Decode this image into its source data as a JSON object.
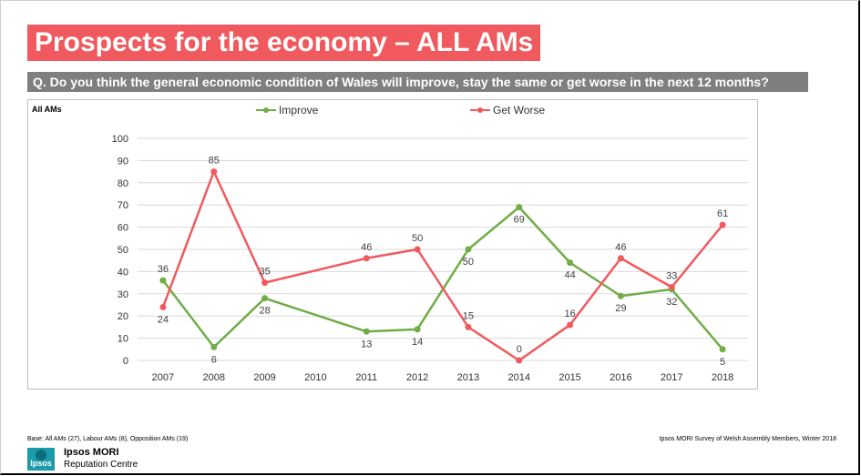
{
  "title": "Prospects for the economy – ALL AMs",
  "question": "Q. Do you think the general economic condition of Wales will improve, stay the same or get worse in the next 12 months?",
  "panel_label": "All AMs",
  "footer": {
    "base": "Base: All AMs (27), Labour AMs (8), Opposition AMs (19)",
    "source": "Ipsos MORI Survey of Welsh Assembly Members, Winter 2018",
    "logo_text": "Ipsos",
    "brand_name": "Ipsos MORI",
    "brand_sub": "Reputation Centre"
  },
  "colors": {
    "title_bg": "#f05a5e",
    "question_bg": "#7f7f7f",
    "improve": "#70ad47",
    "worse": "#f05a5e"
  },
  "chart_data": {
    "type": "line",
    "categories": [
      "2007",
      "2008",
      "2009",
      "2010",
      "2011",
      "2012",
      "2013",
      "2014",
      "2015",
      "2016",
      "2017",
      "2018"
    ],
    "ylim": [
      0,
      100
    ],
    "yticks": [
      "0",
      "10",
      "20",
      "30",
      "40",
      "50",
      "60",
      "70",
      "80",
      "90",
      "100"
    ],
    "grid": true,
    "legend": "top",
    "series": [
      {
        "name": "Improve",
        "color": "#70ad47",
        "values": [
          36,
          6,
          28,
          null,
          13,
          14,
          50,
          69,
          44,
          29,
          32,
          5
        ],
        "label_pos": [
          "above",
          "below",
          "below",
          null,
          "below",
          "below",
          "below",
          "below",
          "below",
          "below",
          "below",
          "below"
        ]
      },
      {
        "name": "Get Worse",
        "color": "#f05a5e",
        "values": [
          24,
          85,
          35,
          null,
          46,
          50,
          15,
          0,
          16,
          46,
          33,
          61
        ],
        "label_pos": [
          "below",
          "above",
          "above",
          null,
          "above",
          "above",
          "above",
          "above",
          "above",
          "above",
          "above",
          "above"
        ]
      }
    ]
  }
}
